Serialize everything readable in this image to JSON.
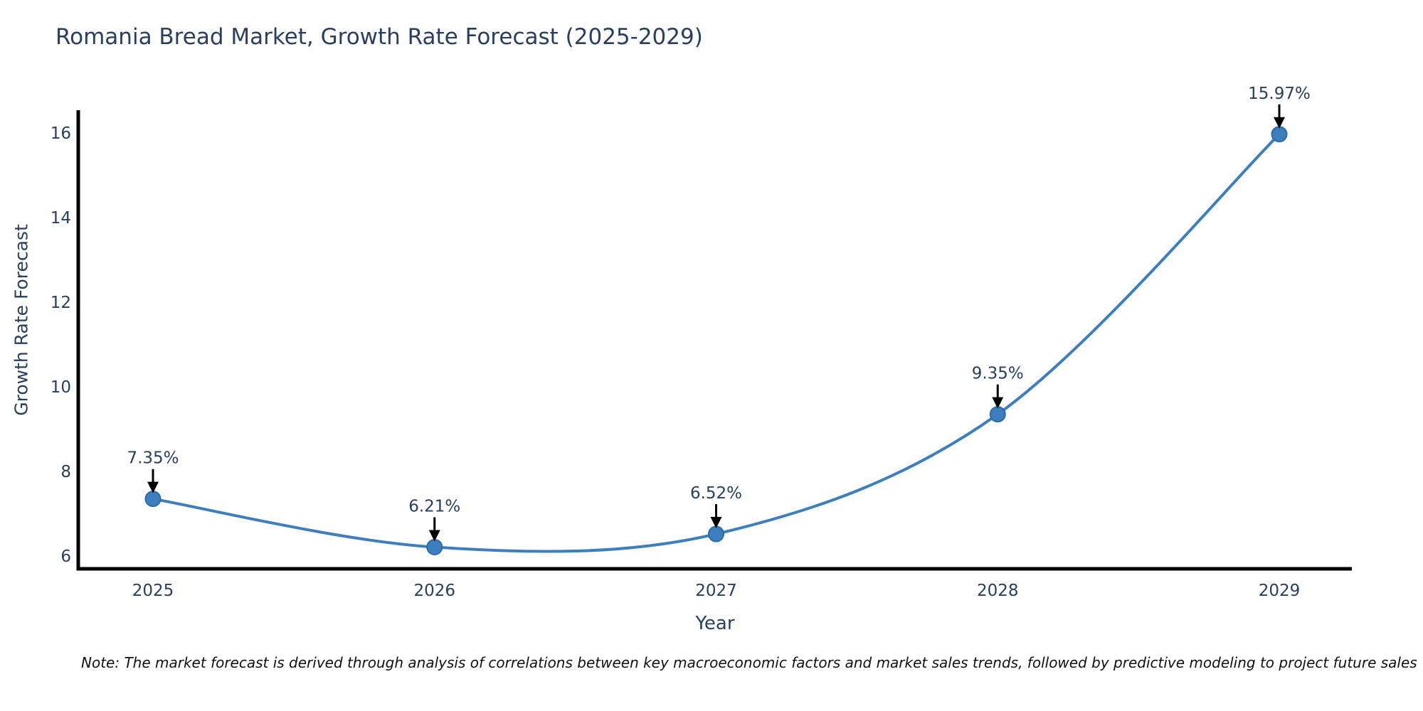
{
  "chart_data": {
    "type": "line",
    "curve": "spline",
    "title": "Romania Bread Market, Growth Rate Forecast (2025-2029)",
    "xlabel": "Year",
    "ylabel": "Growth Rate Forecast",
    "x": [
      2025,
      2026,
      2027,
      2028,
      2029
    ],
    "y": [
      7.35,
      6.21,
      6.52,
      9.35,
      15.97
    ],
    "point_labels": [
      "7.35%",
      "6.21%",
      "6.52%",
      "9.35%",
      "15.97%"
    ],
    "xticks": [
      "2025",
      "2026",
      "2027",
      "2028",
      "2029"
    ],
    "yticks": [
      6,
      8,
      10,
      12,
      14,
      16
    ],
    "ylim": [
      5.7,
      16.5
    ],
    "grid": false,
    "legend": "none",
    "colors": {
      "line": "#3c7ebf",
      "marker_fill": "#3c7ebf",
      "marker_edge": "#2b6ca9",
      "axis_line": "#000000",
      "arrow": "#000000",
      "tick_text": "#2a3f5f",
      "annotation_text": "#2a3f5f",
      "title_text": "#2a3f5f",
      "background": "#ffffff"
    }
  },
  "footer": {
    "note": "Note: The market forecast is derived through analysis of correlations between key macroeconomic factors and market sales trends, followed by predictive modeling to project future sales"
  }
}
